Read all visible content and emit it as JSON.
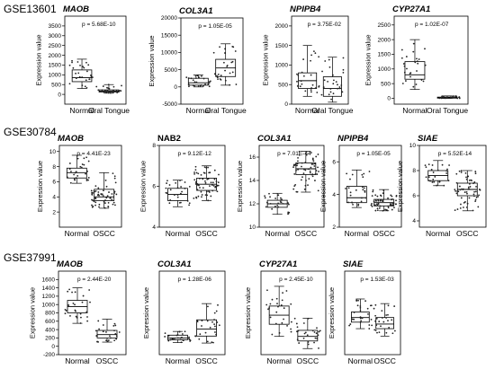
{
  "rows": [
    {
      "label": "GSE13601",
      "panels": [
        0,
        1,
        2,
        3
      ]
    },
    {
      "label": "GSE30784",
      "panels": [
        4,
        5,
        6,
        7,
        8
      ]
    },
    {
      "label": "GSE37991",
      "panels": [
        9,
        10,
        11,
        12
      ]
    }
  ],
  "chart_data": [
    {
      "type": "box",
      "title": "MAOB",
      "title_italic": true,
      "pvalue": "p = 5.68E-10",
      "ylabel": "Expression value",
      "categories": [
        "Normal",
        "Oral Tongue"
      ],
      "ylim": [
        -500,
        4000
      ],
      "yticks": [
        0,
        500,
        1000,
        1500,
        2000,
        2500,
        3000,
        3500
      ],
      "ytick_labels": [
        "0",
        "500",
        "1000",
        "1500",
        "2000",
        "2500",
        "3000",
        "3500"
      ],
      "boxes": [
        {
          "q1": 650,
          "median": 850,
          "q3": 1250,
          "whisker_low": 300,
          "whisker_high": 1800
        },
        {
          "q1": 120,
          "median": 170,
          "q3": 230,
          "whisker_low": 60,
          "whisker_high": 500
        }
      ]
    },
    {
      "type": "box",
      "title": "COL3A1",
      "title_italic": true,
      "pvalue": "p = 1.05E-05",
      "ylabel": "Expression value",
      "categories": [
        "Normal",
        "Oral Tongue"
      ],
      "ylim": [
        -5000,
        20000
      ],
      "yticks": [
        -5000,
        0,
        5000,
        10000,
        15000,
        20000
      ],
      "ytick_labels": [
        "-5000",
        "0",
        "5000",
        "10000",
        "15000",
        "20000"
      ],
      "boxes": [
        {
          "q1": 500,
          "median": 1200,
          "q3": 2500,
          "whisker_low": 0,
          "whisker_high": 3500
        },
        {
          "q1": 3000,
          "median": 5500,
          "q3": 8000,
          "whisker_low": 500,
          "whisker_high": 12500
        }
      ]
    },
    {
      "type": "box",
      "title": "NPIPB4",
      "title_italic": true,
      "pvalue": "p = 3.75E-02",
      "ylabel": "Expression value",
      "categories": [
        "Normal",
        "Oral Tongue"
      ],
      "ylim": [
        0,
        2250
      ],
      "yticks": [
        0,
        500,
        1000,
        1500,
        2000
      ],
      "ytick_labels": [
        "0",
        "500",
        "1000",
        "1500",
        "2000"
      ],
      "boxes": [
        {
          "q1": 400,
          "median": 600,
          "q3": 800,
          "whisker_low": 200,
          "whisker_high": 1500
        },
        {
          "q1": 200,
          "median": 400,
          "q3": 700,
          "whisker_low": 50,
          "whisker_high": 1200
        }
      ]
    },
    {
      "type": "box",
      "title": "CYP27A1",
      "title_italic": true,
      "pvalue": "p = 1.02E-07",
      "ylabel": "Expression value",
      "categories": [
        "Normal",
        "Oral Tongue"
      ],
      "ylim": [
        -200,
        2800
      ],
      "yticks": [
        0,
        500,
        1000,
        1500,
        2000,
        2500
      ],
      "ytick_labels": [
        "0",
        "500",
        "1000",
        "1500",
        "2000",
        "2500"
      ],
      "boxes": [
        {
          "q1": 650,
          "median": 800,
          "q3": 1250,
          "whisker_low": 300,
          "whisker_high": 2000
        },
        {
          "q1": 5,
          "median": 20,
          "q3": 40,
          "whisker_low": 0,
          "whisker_high": 80
        }
      ]
    },
    {
      "type": "box",
      "title": "MAOB",
      "title_italic": true,
      "pvalue": "p = 4.41E-23",
      "ylabel": "Expression value",
      "categories": [
        "Normal",
        "OSCC"
      ],
      "ylim": [
        0,
        10.8
      ],
      "yticks": [
        2,
        4,
        6,
        8,
        10
      ],
      "ytick_labels": [
        "2",
        "4",
        "6",
        "8",
        "10"
      ],
      "boxes": [
        {
          "q1": 6.5,
          "median": 7.2,
          "q3": 7.8,
          "whisker_low": 5.8,
          "whisker_high": 9.5
        },
        {
          "q1": 3.5,
          "median": 4.0,
          "q3": 5.0,
          "whisker_low": 2.5,
          "whisker_high": 7.2
        }
      ]
    },
    {
      "type": "box",
      "title": "NAB2",
      "title_italic": false,
      "pvalue": "p = 9.12E-12",
      "ylabel": "Expression value",
      "categories": [
        "Normal",
        "OSCC"
      ],
      "ylim": [
        4,
        8
      ],
      "yticks": [
        4,
        6,
        8
      ],
      "ytick_labels": [
        "4",
        "6",
        "8"
      ],
      "boxes": [
        {
          "q1": 5.3,
          "median": 5.6,
          "q3": 5.9,
          "whisker_low": 5.0,
          "whisker_high": 6.3
        },
        {
          "q1": 5.8,
          "median": 6.1,
          "q3": 6.4,
          "whisker_low": 5.3,
          "whisker_high": 7.0
        }
      ]
    },
    {
      "type": "box",
      "title": "COL3A1",
      "title_italic": true,
      "pvalue": "p = 7.01E-44",
      "ylabel": "Expression value",
      "categories": [
        "Normal",
        "OSCC"
      ],
      "ylim": [
        10,
        17
      ],
      "yticks": [
        10,
        12,
        14,
        16
      ],
      "ytick_labels": [
        "10",
        "12",
        "14",
        "16"
      ],
      "boxes": [
        {
          "q1": 11.7,
          "median": 12.0,
          "q3": 12.3,
          "whisker_low": 11.1,
          "whisker_high": 12.9
        },
        {
          "q1": 14.5,
          "median": 15.0,
          "q3": 15.5,
          "whisker_low": 13.0,
          "whisker_high": 16.5
        }
      ]
    },
    {
      "type": "box",
      "title": "NPIPB4",
      "title_italic": true,
      "pvalue": "p = 1.05E-05",
      "ylabel": "Expression value",
      "categories": [
        "Normal",
        "OSCC"
      ],
      "ylim": [
        2,
        7
      ],
      "yticks": [
        2,
        4,
        6
      ],
      "ytick_labels": [
        "2",
        "4",
        "6"
      ],
      "boxes": [
        {
          "q1": 3.5,
          "median": 3.8,
          "q3": 4.5,
          "whisker_low": 3.2,
          "whisker_high": 5.5
        },
        {
          "q1": 3.3,
          "median": 3.5,
          "q3": 3.7,
          "whisker_low": 3.0,
          "whisker_high": 4.3
        }
      ]
    },
    {
      "type": "box",
      "title": "SIAE",
      "title_italic": true,
      "pvalue": "p = 5.52E-14",
      "ylabel": "Expression value",
      "categories": [
        "Normal",
        "OSCC"
      ],
      "ylim": [
        3.5,
        10
      ],
      "yticks": [
        4,
        6,
        8,
        10
      ],
      "ytick_labels": [
        "4",
        "6",
        "8",
        "10"
      ],
      "boxes": [
        {
          "q1": 7.2,
          "median": 7.6,
          "q3": 8.0,
          "whisker_low": 6.8,
          "whisker_high": 8.8
        },
        {
          "q1": 6.0,
          "median": 6.5,
          "q3": 7.0,
          "whisker_low": 4.8,
          "whisker_high": 8.0
        }
      ]
    },
    {
      "type": "box",
      "title": "MAOB",
      "title_italic": true,
      "pvalue": "p = 2.44E-20",
      "ylabel": "Expression value",
      "categories": [
        "Normal",
        "OSCC"
      ],
      "ylim": [
        -200,
        1800
      ],
      "yticks": [
        -200,
        0,
        200,
        400,
        600,
        800,
        1000,
        1200,
        1400,
        1600
      ],
      "ytick_labels": [
        "-200",
        "0",
        "200",
        "400",
        "600",
        "800",
        "1000",
        "1200",
        "1400",
        "1600"
      ],
      "boxes": [
        {
          "q1": 800,
          "median": 950,
          "q3": 1100,
          "whisker_low": 550,
          "whisker_high": 1400
        },
        {
          "q1": 200,
          "median": 280,
          "q3": 380,
          "whisker_low": 100,
          "whisker_high": 650
        }
      ]
    },
    {
      "type": "box",
      "title": "COL3A1",
      "title_italic": true,
      "pvalue": "p = 1.28E-06",
      "ylabel": "Expression value",
      "categories": [
        "Normal",
        "OSCC"
      ],
      "ylim": [
        2,
        20
      ],
      "yticks": [],
      "ytick_labels": [],
      "boxes": [
        {
          "q1": 5.2,
          "median": 5.6,
          "q3": 6.2,
          "whisker_low": 4.6,
          "whisker_high": 7.0
        },
        {
          "q1": 6.0,
          "median": 7.5,
          "q3": 9.5,
          "whisker_low": 4.5,
          "whisker_high": 13.0
        }
      ]
    },
    {
      "type": "box",
      "title": "CYP27A1",
      "title_italic": true,
      "pvalue": "p = 2.45E-10",
      "ylabel": "Expression value",
      "categories": [
        "Normal",
        "OSCC"
      ],
      "ylim": [
        0,
        5.5
      ],
      "yticks": [],
      "ytick_labels": [],
      "boxes": [
        {
          "q1": 2.0,
          "median": 2.6,
          "q3": 3.2,
          "whisker_low": 1.2,
          "whisker_high": 4.5
        },
        {
          "q1": 0.9,
          "median": 1.2,
          "q3": 1.6,
          "whisker_low": 0.4,
          "whisker_high": 2.4
        }
      ]
    },
    {
      "type": "box",
      "title": "SIAE",
      "title_italic": true,
      "pvalue": "p = 1.53E-03",
      "ylabel": "Expression value",
      "categories": [
        "Normal",
        "OSCC"
      ],
      "ylim": [
        2,
        11
      ],
      "yticks": [],
      "ytick_labels": [],
      "boxes": [
        {
          "q1": 5.5,
          "median": 6.0,
          "q3": 6.6,
          "whisker_low": 4.8,
          "whisker_high": 8.0
        },
        {
          "q1": 4.8,
          "median": 5.3,
          "q3": 6.0,
          "whisker_low": 4.0,
          "whisker_high": 7.5
        }
      ]
    }
  ]
}
